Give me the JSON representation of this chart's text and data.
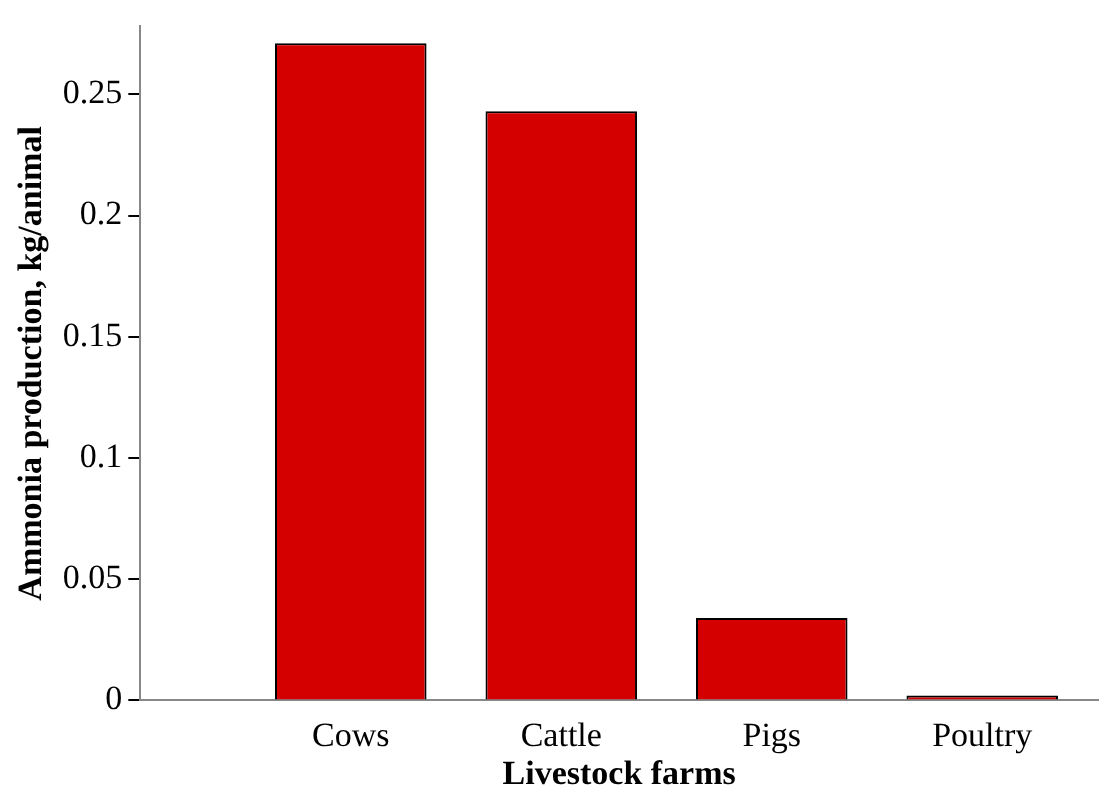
{
  "chart_data": {
    "type": "bar",
    "xlabel": "Livestock farms",
    "ylabel": "Ammonia production, kg/animal",
    "categories": [
      "Cows",
      "Cattle",
      "Pigs",
      "Poultry"
    ],
    "values": [
      0.271,
      0.243,
      0.034,
      0.002
    ],
    "color": "#d40000",
    "ylim": [
      0,
      0.278
    ],
    "yticks": [
      0,
      0.05,
      0.1,
      0.15,
      0.2,
      0.25
    ],
    "grid": false,
    "legend": false
  }
}
